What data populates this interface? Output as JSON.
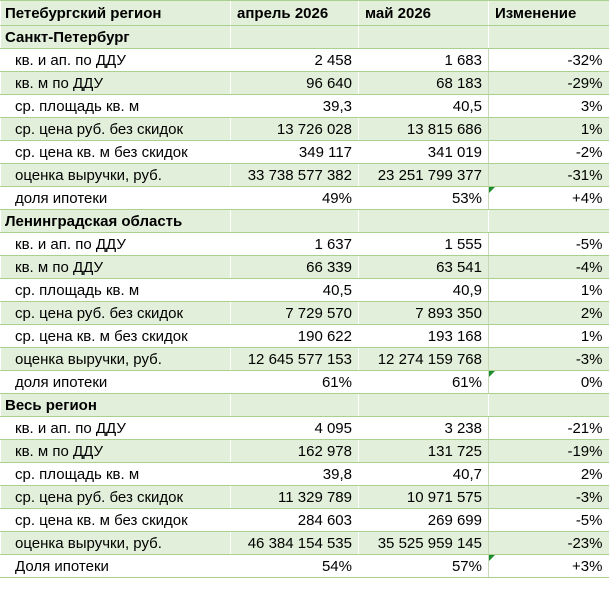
{
  "header": {
    "title": "Петебургский регион",
    "col1": "апрель 2026",
    "col2": "май 2026",
    "col3": "Изменение"
  },
  "sections": [
    {
      "name": "Санкт-Петербург",
      "rows": [
        {
          "label": "кв. и ап. по ДДУ",
          "apr": "2 458",
          "may": "1 683",
          "chg": "-32%"
        },
        {
          "label": "кв. м по ДДУ",
          "apr": "96 640",
          "may": "68 183",
          "chg": "-29%"
        },
        {
          "label": "ср. площадь кв. м",
          "apr": "39,3",
          "may": "40,5",
          "chg": "3%"
        },
        {
          "label": "ср. цена руб. без скидок",
          "apr": "13 726 028",
          "may": "13 815 686",
          "chg": "1%"
        },
        {
          "label": "ср. цена кв. м без скидок",
          "apr": "349 117",
          "may": "341 019",
          "chg": "-2%"
        },
        {
          "label": "оценка выручки, руб.",
          "apr": "33 738 577 382",
          "may": "23 251 799 377",
          "chg": "-31%"
        },
        {
          "label": "доля ипотеки",
          "apr": "49%",
          "may": "53%",
          "chg": "+4%"
        }
      ]
    },
    {
      "name": "Ленинградская область",
      "rows": [
        {
          "label": "кв. и ап. по ДДУ",
          "apr": "1 637",
          "may": "1 555",
          "chg": "-5%"
        },
        {
          "label": "кв. м по ДДУ",
          "apr": "66 339",
          "may": "63 541",
          "chg": "-4%"
        },
        {
          "label": "ср. площадь кв. м",
          "apr": "40,5",
          "may": "40,9",
          "chg": "1%"
        },
        {
          "label": "ср. цена руб. без скидок",
          "apr": "7 729 570",
          "may": "7 893 350",
          "chg": "2%"
        },
        {
          "label": "ср. цена кв. м без скидок",
          "apr": "190 622",
          "may": "193 168",
          "chg": "1%"
        },
        {
          "label": "оценка выручки, руб.",
          "apr": "12 645 577 153",
          "may": "12 274 159 768",
          "chg": "-3%"
        },
        {
          "label": "доля ипотеки",
          "apr": "61%",
          "may": "61%",
          "chg": "0%"
        }
      ]
    },
    {
      "name": "Весь регион",
      "rows": [
        {
          "label": "кв. и ап. по ДДУ",
          "apr": "4 095",
          "may": "3 238",
          "chg": "-21%"
        },
        {
          "label": "кв. м по ДДУ",
          "apr": "162 978",
          "may": "131 725",
          "chg": "-19%"
        },
        {
          "label": "ср. площадь кв. м",
          "apr": "39,8",
          "may": "40,7",
          "chg": "2%"
        },
        {
          "label": "ср. цена руб. без скидок",
          "apr": "11 329 789",
          "may": "10 971 575",
          "chg": "-3%"
        },
        {
          "label": "ср. цена кв. м без скидок",
          "apr": "284 603",
          "may": "269 699",
          "chg": "-5%"
        },
        {
          "label": "оценка выручки, руб.",
          "apr": "46 384 154 535",
          "may": "35 525 959 145",
          "chg": "-23%"
        },
        {
          "label": "Доля ипотеки",
          "apr": "54%",
          "may": "57%",
          "chg": "+3%"
        }
      ]
    }
  ]
}
